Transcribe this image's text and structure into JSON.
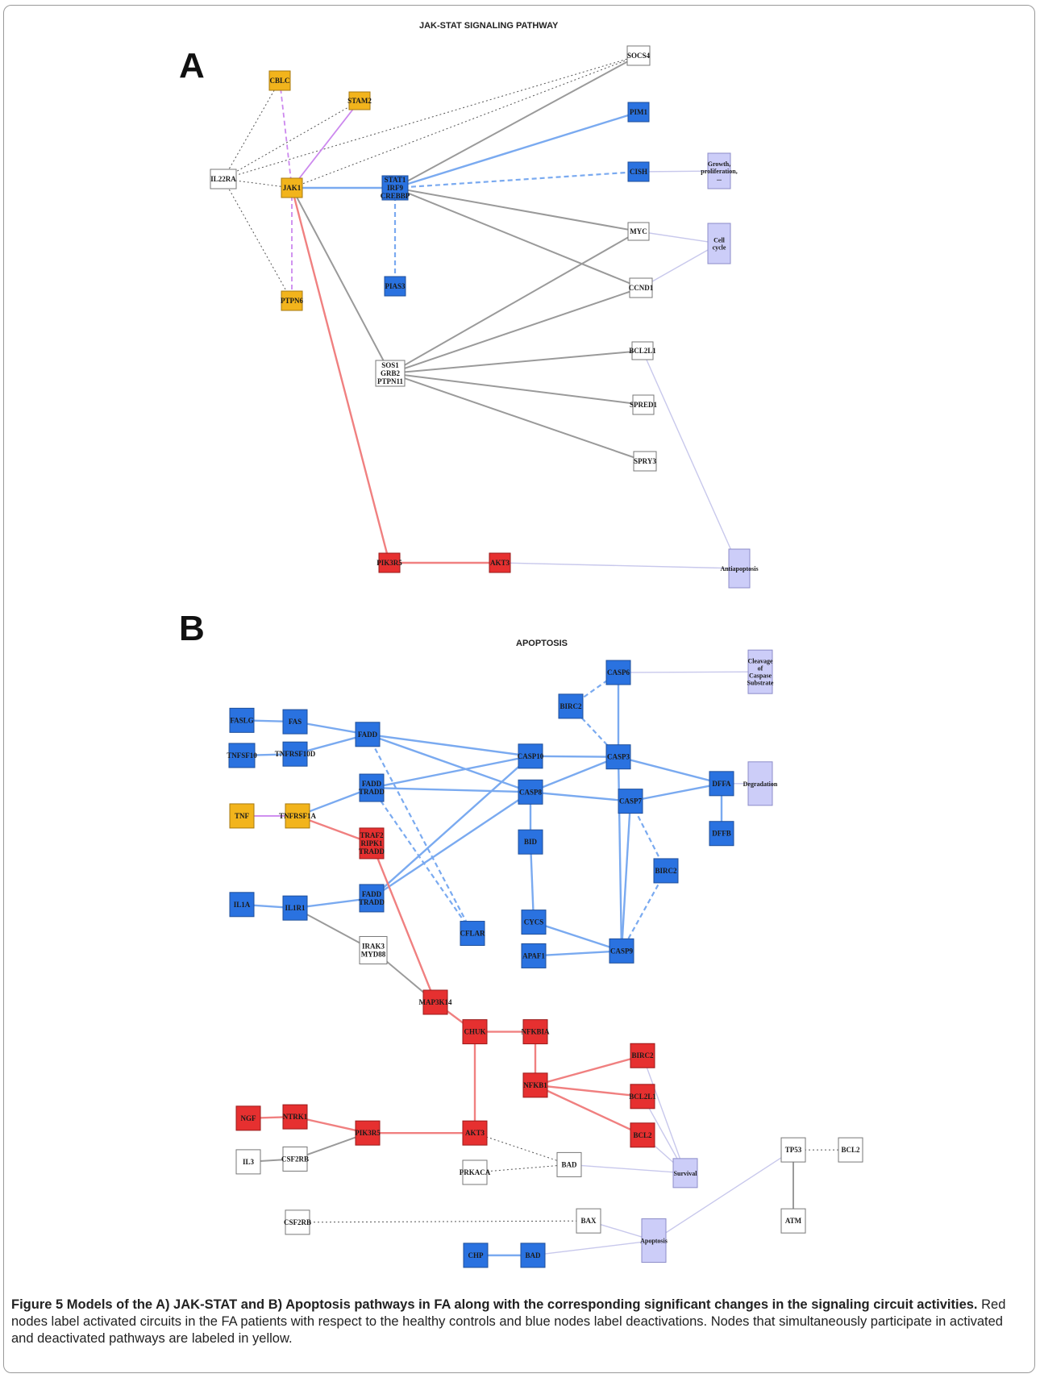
{
  "colors": {
    "activated": "#e63030",
    "deactivated": "#2a72e0",
    "both": "#f2b41c",
    "unchanged": "#ffffff",
    "function": "#cccdf8",
    "edge_activated": "#f08080",
    "edge_deactivated": "#7aaaf0",
    "edge_grey": "#9a9a9a",
    "edge_purple": "#cc88ee",
    "edge_function": "#c8c8ec",
    "edge_dotted": "#555555"
  },
  "panels": {
    "a": {
      "letter": "A",
      "title": "JAK-STAT SIGNALING PATHWAY",
      "nodes": [
        {
          "id": "a-cblc",
          "label": "CBLC",
          "type": "both"
        },
        {
          "id": "a-stam2",
          "label": "STAM2",
          "type": "both"
        },
        {
          "id": "a-il22ra",
          "label": "IL22RA",
          "type": "unchanged"
        },
        {
          "id": "a-jak1",
          "label": "JAK1",
          "type": "both"
        },
        {
          "id": "a-ptpn6",
          "label": "PTPN6",
          "type": "both"
        },
        {
          "id": "a-stat",
          "label": "STAT1",
          "label2": "IRF9",
          "label3": "CREBBP",
          "type": "deactivated"
        },
        {
          "id": "a-pias3",
          "label": "PIAS3",
          "type": "deactivated"
        },
        {
          "id": "a-socs4",
          "label": "SOCS4",
          "type": "unchanged"
        },
        {
          "id": "a-pim1",
          "label": "PIM1",
          "type": "deactivated"
        },
        {
          "id": "a-cish",
          "label": "CISH",
          "type": "deactivated"
        },
        {
          "id": "a-myc",
          "label": "MYC",
          "type": "unchanged"
        },
        {
          "id": "a-ccnd1",
          "label": "CCND1",
          "type": "unchanged"
        },
        {
          "id": "a-sos1",
          "label": "SOS1",
          "label2": "GRB2",
          "label3": "PTPN11",
          "type": "unchanged"
        },
        {
          "id": "a-bcl2l1",
          "label": "BCL2L1",
          "type": "unchanged"
        },
        {
          "id": "a-spred1",
          "label": "SPRED1",
          "type": "unchanged"
        },
        {
          "id": "a-spry3",
          "label": "SPRY3",
          "type": "unchanged"
        },
        {
          "id": "a-pik3r5",
          "label": "PIK3R5",
          "type": "activated"
        },
        {
          "id": "a-akt3",
          "label": "AKT3",
          "type": "activated"
        },
        {
          "id": "a-growth",
          "label": "Growth,",
          "label2": "proliferation,",
          "label3": "...",
          "type": "function"
        },
        {
          "id": "a-cellcycle",
          "label": "Cell",
          "label2": "cycle",
          "type": "function"
        },
        {
          "id": "a-antiapoptosis",
          "label": "Antiapoptosis",
          "type": "function"
        }
      ]
    },
    "b": {
      "letter": "B",
      "title": "APOPTOSIS",
      "nodes": [
        {
          "id": "b-faslg",
          "label": "FASLG",
          "type": "deactivated"
        },
        {
          "id": "b-fas",
          "label": "FAS",
          "type": "deactivated"
        },
        {
          "id": "b-tnfsf10",
          "label": "TNFSF10",
          "type": "deactivated"
        },
        {
          "id": "b-tnfrsf10d",
          "label": "TNFRSF10D",
          "type": "deactivated"
        },
        {
          "id": "b-fadd1",
          "label": "FADD",
          "type": "deactivated"
        },
        {
          "id": "b-fadd2",
          "label": "FADD",
          "label2": "TRADD",
          "type": "deactivated"
        },
        {
          "id": "b-tnf",
          "label": "TNF",
          "type": "both"
        },
        {
          "id": "b-tnfrsf1a",
          "label": "TNFRSF1A",
          "type": "both"
        },
        {
          "id": "b-traf2",
          "label": "TRAF2",
          "label2": "RIPK1",
          "label3": "TRADD",
          "type": "activated"
        },
        {
          "id": "b-casp10",
          "label": "CASP10",
          "type": "deactivated"
        },
        {
          "id": "b-casp8",
          "label": "CASP8",
          "type": "deactivated"
        },
        {
          "id": "b-casp6",
          "label": "CASP6",
          "type": "deactivated"
        },
        {
          "id": "b-birc2a",
          "label": "BIRC2",
          "type": "deactivated"
        },
        {
          "id": "b-casp3",
          "label": "CASP3",
          "type": "deactivated"
        },
        {
          "id": "b-casp7",
          "label": "CASP7",
          "type": "deactivated"
        },
        {
          "id": "b-dffa",
          "label": "DFFA",
          "type": "deactivated"
        },
        {
          "id": "b-dffb",
          "label": "DFFB",
          "type": "deactivated"
        },
        {
          "id": "b-bid",
          "label": "BID",
          "type": "deactivated"
        },
        {
          "id": "b-birc2b",
          "label": "BIRC2",
          "type": "deactivated"
        },
        {
          "id": "b-il1a",
          "label": "IL1A",
          "type": "deactivated"
        },
        {
          "id": "b-il1r1",
          "label": "IL1R1",
          "type": "deactivated"
        },
        {
          "id": "b-fadd3",
          "label": "FADD",
          "label2": "TRADD",
          "type": "deactivated"
        },
        {
          "id": "b-cflar",
          "label": "CFLAR",
          "type": "deactivated"
        },
        {
          "id": "b-cycs",
          "label": "CYCS",
          "type": "deactivated"
        },
        {
          "id": "b-apaf1",
          "label": "APAF1",
          "type": "deactivated"
        },
        {
          "id": "b-casp9",
          "label": "CASP9",
          "type": "deactivated"
        },
        {
          "id": "b-irak3",
          "label": "IRAK3",
          "label2": "MYD88",
          "type": "unchanged"
        },
        {
          "id": "b-map3k14",
          "label": "MAP3K14",
          "type": "activated"
        },
        {
          "id": "b-chuk",
          "label": "CHUK",
          "type": "activated"
        },
        {
          "id": "b-nfkbia",
          "label": "NFKBIA",
          "type": "activated"
        },
        {
          "id": "b-nfkb1",
          "label": "NFKB1",
          "type": "activated"
        },
        {
          "id": "b-birc2c",
          "label": "BIRC2",
          "type": "activated"
        },
        {
          "id": "b-bcl2l1",
          "label": "BCL2L1",
          "type": "activated"
        },
        {
          "id": "b-bcl2a",
          "label": "BCL2",
          "type": "activated"
        },
        {
          "id": "b-ngf",
          "label": "NGF",
          "type": "activated"
        },
        {
          "id": "b-ntrk1",
          "label": "NTRK1",
          "type": "activated"
        },
        {
          "id": "b-pik3r5",
          "label": "PIK3R5",
          "type": "activated"
        },
        {
          "id": "b-akt3",
          "label": "AKT3",
          "type": "activated"
        },
        {
          "id": "b-il3",
          "label": "IL3",
          "type": "unchanged"
        },
        {
          "id": "b-csf2rb1",
          "label": "CSF2RB",
          "type": "unchanged"
        },
        {
          "id": "b-bad1",
          "label": "BAD",
          "type": "unchanged"
        },
        {
          "id": "b-prkaca",
          "label": "PRKACA",
          "type": "unchanged"
        },
        {
          "id": "b-tp53",
          "label": "TP53",
          "type": "unchanged"
        },
        {
          "id": "b-bcl2b",
          "label": "BCL2",
          "type": "unchanged"
        },
        {
          "id": "b-atm",
          "label": "ATM",
          "type": "unchanged"
        },
        {
          "id": "b-csf2rb2",
          "label": "CSF2RB",
          "type": "unchanged"
        },
        {
          "id": "b-bax",
          "label": "BAX",
          "type": "unchanged"
        },
        {
          "id": "b-chp",
          "label": "CHP",
          "type": "deactivated"
        },
        {
          "id": "b-bad2",
          "label": "BAD",
          "type": "deactivated"
        },
        {
          "id": "b-cleavage",
          "label": "Cleavage",
          "label2": "of",
          "label3": "Caspase",
          "label4": "Substrate",
          "type": "function"
        },
        {
          "id": "b-degradation",
          "label": "Degradation",
          "type": "function"
        },
        {
          "id": "b-survival",
          "label": "Survival",
          "type": "function"
        },
        {
          "id": "b-apoptosis",
          "label": "Apoptosis",
          "type": "function"
        }
      ]
    }
  },
  "caption": {
    "bold": "Figure 5 Models of the A) JAK-STAT and B) Apoptosis pathways in FA along with the corresponding significant changes in the signaling circuit activities.",
    "text": "Red nodes label activated circuits in the FA patients with respect to the healthy controls and blue nodes label deactivations. Nodes that simultaneously participate in activated and deactivated pathways are labeled in yellow."
  }
}
